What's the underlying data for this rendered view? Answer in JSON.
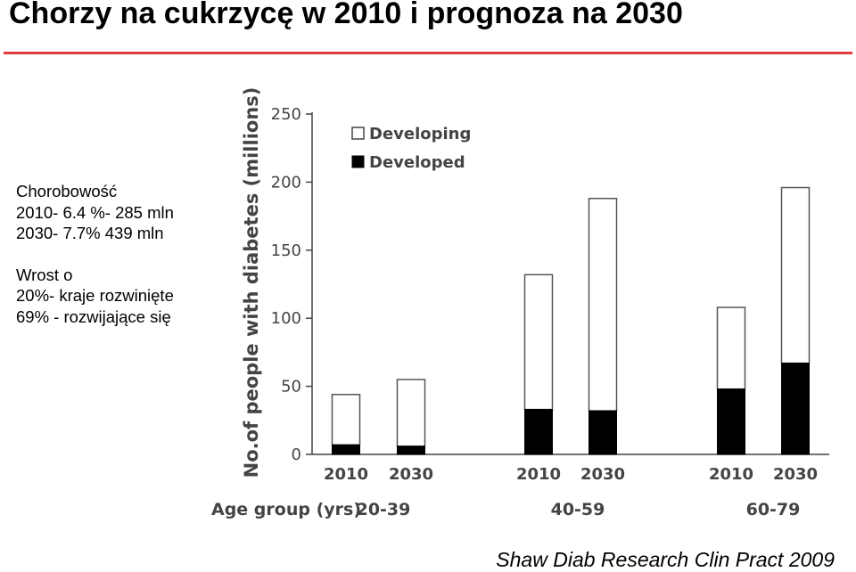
{
  "page": {
    "title": "Chorzy na cukrzycę w 2010 i prognoza na 2030",
    "accent_color": "#e03c3c",
    "notes": {
      "heading": "Chorobowość",
      "line1": "2010- 6.4 %- 285 mln",
      "line2": "2030- 7.7% 439 mln",
      "growth_heading": "Wrost o",
      "growth1": "20%- kraje rozwinięte",
      "growth2": "69% - rozwijające się"
    },
    "source": "Shaw Diab Research Clin Pract 2009"
  },
  "chart_data": {
    "type": "bar",
    "stacked": true,
    "ylabel": "No.of people with diabetes (millions)",
    "xlabel": "Age group (yrs)",
    "ylim": [
      0,
      250
    ],
    "yticks": [
      0,
      50,
      100,
      150,
      200,
      250
    ],
    "groups": [
      "20-39",
      "40-59",
      "60-79"
    ],
    "categories": [
      "2010",
      "2030",
      "2010",
      "2030",
      "2010",
      "2030"
    ],
    "legend_position": "top-left",
    "series": [
      {
        "name": "Developed",
        "color": "#000000",
        "values": [
          7,
          6,
          33,
          32,
          48,
          67
        ]
      },
      {
        "name": "Developing",
        "color": "#ffffff",
        "values": [
          37,
          49,
          99,
          156,
          60,
          129
        ]
      }
    ]
  }
}
